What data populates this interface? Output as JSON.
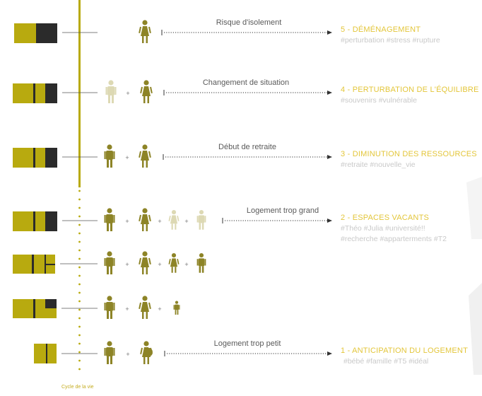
{
  "axis_label": "Cycle de la vie",
  "colors": {
    "olive": "#b8aa0f",
    "figure": "#8d8427",
    "figure_light": "#ddd9b4",
    "dark": "#2b2b2b",
    "dot_line": "#b8aa0f",
    "title": "#e3c63a",
    "tags": "#c9c9c9"
  },
  "rows": [
    {
      "mid_label": "Risque d'isolement",
      "title": "5 - DÉMÉNAGEMENT",
      "tags": [
        "#perturbation #stress #rupture"
      ],
      "figures": [
        "woman"
      ]
    },
    {
      "mid_label": "Changement de situation",
      "title": "4 - PERTURBATION DE L'ÉQUILIBRE",
      "tags": [
        "#souvenirs #vulnérable"
      ],
      "figures": [
        "man-ghost",
        "woman"
      ]
    },
    {
      "mid_label": "Début de retraite",
      "title": "3 - DIMINUTION DES RESSOURCES",
      "tags": [
        "#retraite #nouvelle_vie"
      ],
      "figures": [
        "man",
        "woman"
      ]
    },
    {
      "mid_label": "Logement trop grand",
      "title": "2 - ESPACES VACANTS",
      "tags": [
        "#Théo #Julia #université!!",
        "#recherche #apparterments #T2"
      ],
      "figures": [
        "man",
        "woman",
        "girl-ghost",
        "boy-ghost"
      ]
    },
    {
      "mid_label": "",
      "title": "",
      "tags": [],
      "figures": [
        "man",
        "woman",
        "girl",
        "boy"
      ]
    },
    {
      "mid_label": "",
      "title": "",
      "tags": [],
      "figures": [
        "man",
        "woman",
        "baby"
      ]
    },
    {
      "mid_label": "Logement trop petit",
      "title": "1 - ANTICIPATION DU LOGEMENT",
      "tags": [
        "#bébé #famille #T5 #idéal"
      ],
      "figures": [
        "man",
        "pregnant"
      ]
    }
  ]
}
